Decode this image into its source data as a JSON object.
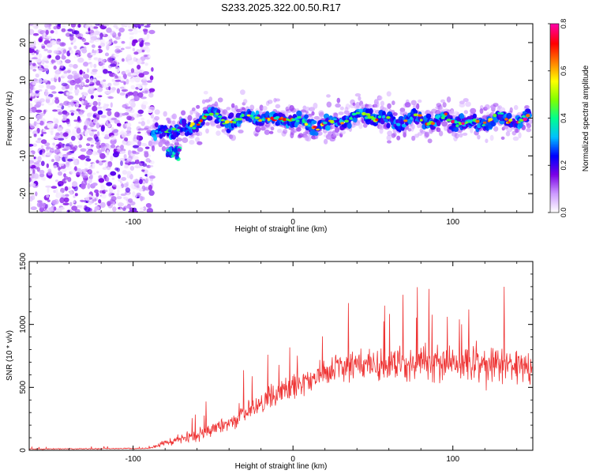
{
  "chart_data": [
    {
      "type": "heatmap",
      "title": "S233.2025.322.00.50.R17",
      "xlabel": "Height of straight line (km)",
      "ylabel": "Frequency (Hz)",
      "xlim": [
        -165,
        150
      ],
      "ylim": [
        -25,
        25
      ],
      "xticks": [
        -100,
        0,
        100
      ],
      "yticks": [
        -20,
        -10,
        0,
        10,
        20
      ],
      "xtick_labels": [
        "-100",
        "0",
        "100"
      ],
      "ytick_labels": [
        "-20",
        "-10",
        "0",
        "10",
        "20"
      ],
      "noise_region_x": [
        -165,
        -88
      ],
      "signal_ridge": {
        "x": [
          -88,
          -80,
          -72,
          -65,
          -55,
          -45,
          -35,
          -25,
          -15,
          -5,
          5,
          15,
          25,
          35,
          45,
          55,
          65,
          75,
          85,
          95,
          105,
          115,
          125,
          135,
          148
        ],
        "freq_hz": [
          -5,
          -3,
          -3,
          -3,
          1,
          0,
          -1,
          1,
          -1,
          0,
          -1,
          -2,
          -1,
          0,
          1,
          0,
          -1,
          0,
          -1,
          0,
          -1,
          -2,
          0,
          -1,
          0
        ]
      },
      "colorbar": {
        "label": "Normalized spectral amplitude",
        "range": [
          0.0,
          0.8
        ],
        "ticks": [
          0.0,
          0.2,
          0.4,
          0.6,
          0.8
        ],
        "tick_labels": [
          "0.0",
          "0.2",
          "0.4",
          "0.6",
          "0.8"
        ],
        "colormap": [
          "#ffffff",
          "#cc99ff",
          "#7a00e6",
          "#0000ff",
          "#00c0ff",
          "#00ff90",
          "#80ff00",
          "#ffff00",
          "#ff8000",
          "#ff0000",
          "#ff00a0"
        ]
      }
    },
    {
      "type": "line",
      "xlabel": "Height of straight line (km)",
      "ylabel": "SNR (10 * v/v)",
      "xlim": [
        -165,
        150
      ],
      "ylim": [
        0,
        1500
      ],
      "xticks": [
        -100,
        0,
        100
      ],
      "yticks": [
        0,
        500,
        1000,
        1500
      ],
      "xtick_labels": [
        "-100",
        "0",
        "100"
      ],
      "ytick_labels": [
        "0",
        "500",
        "1000",
        "1500"
      ],
      "series": [
        {
          "name": "SNR",
          "color": "#ee3333",
          "envelope_x": [
            -165,
            -90,
            -80,
            -60,
            -40,
            -20,
            0,
            20,
            40,
            60,
            80,
            100,
            120,
            150
          ],
          "envelope_mean": [
            10,
            15,
            60,
            120,
            230,
            380,
            500,
            620,
            690,
            680,
            700,
            690,
            680,
            660
          ],
          "envelope_spread": [
            8,
            10,
            60,
            110,
            150,
            200,
            220,
            260,
            300,
            300,
            320,
            330,
            360,
            330
          ]
        }
      ]
    }
  ]
}
